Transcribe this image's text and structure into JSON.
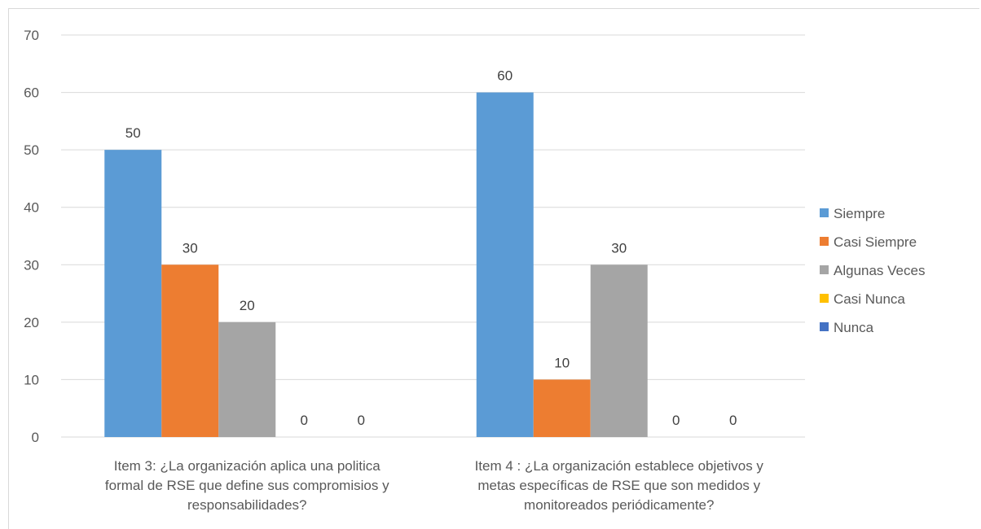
{
  "chart_data": {
    "type": "bar",
    "title": "",
    "xlabel": "",
    "ylabel": "",
    "ylim": [
      0,
      70
    ],
    "yticks": [
      0,
      10,
      20,
      30,
      40,
      50,
      60,
      70
    ],
    "grid": true,
    "legend_position": "right",
    "categories": [
      [
        "Item 3: ¿La organización aplica una politica",
        "formal de RSE que define sus compromisios y",
        "responsabilidades?"
      ],
      [
        "Item 4 : ¿La organización establece objetivos y",
        "metas específicas de RSE que son medidos y",
        "monitoreados periódicamente?"
      ]
    ],
    "series": [
      {
        "name": "Siempre",
        "color": "#5b9bd5",
        "values": [
          50,
          60
        ]
      },
      {
        "name": "Casi Siempre",
        "color": "#ed7d31",
        "values": [
          30,
          10
        ]
      },
      {
        "name": "Algunas Veces",
        "color": "#a5a5a5",
        "values": [
          20,
          30
        ]
      },
      {
        "name": "Casi Nunca",
        "color": "#ffc000",
        "values": [
          0,
          0
        ]
      },
      {
        "name": "Nunca",
        "color": "#4472c4",
        "values": [
          0,
          0
        ]
      }
    ]
  }
}
